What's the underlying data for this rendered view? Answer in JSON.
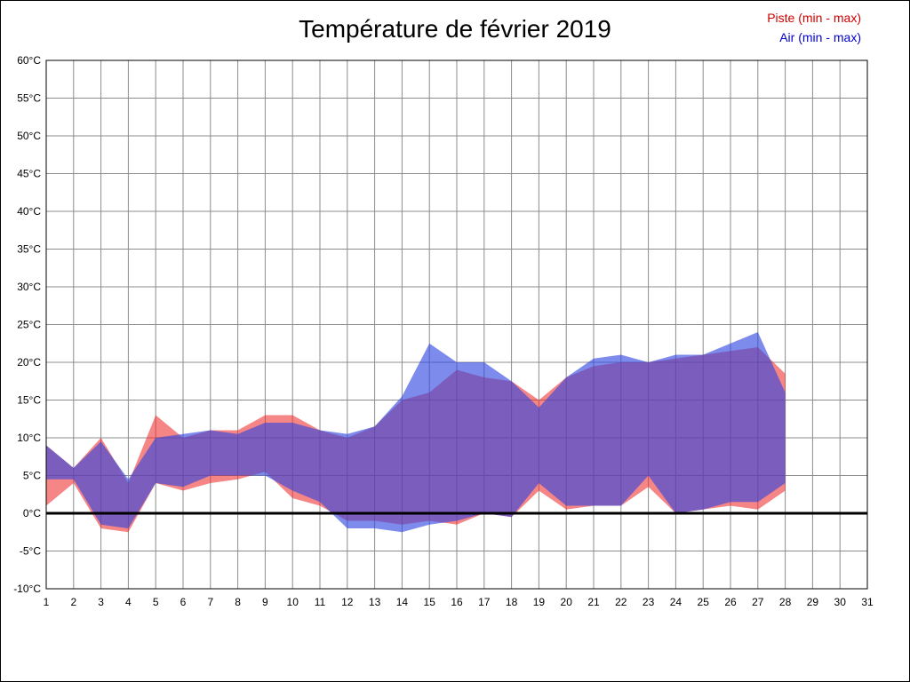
{
  "header": {
    "title": "Température de février 2019"
  },
  "legend": {
    "items": [
      {
        "label": "Piste (min - max)",
        "color": "#cc0000"
      },
      {
        "label": "Air (min - max)",
        "color": "#0000cc"
      }
    ]
  },
  "chart_data": {
    "type": "area",
    "title": "Température de février 2019",
    "xlabel": "",
    "ylabel": "",
    "xlim": [
      1,
      31
    ],
    "ylim": [
      -10,
      60
    ],
    "ytick_step": 5,
    "grid": true,
    "grid_color": "#8c8c8c",
    "zero_line": {
      "value": 0,
      "color": "#000000",
      "width": 3
    },
    "x": [
      1,
      2,
      3,
      4,
      5,
      6,
      7,
      8,
      9,
      10,
      11,
      12,
      13,
      14,
      15,
      16,
      17,
      18,
      19,
      20,
      21,
      22,
      23,
      24,
      25,
      26,
      27,
      28
    ],
    "xticks": [
      "1",
      "2",
      "3",
      "4",
      "5",
      "6",
      "7",
      "8",
      "9",
      "10",
      "11",
      "12",
      "13",
      "14",
      "15",
      "16",
      "17",
      "18",
      "19",
      "20",
      "21",
      "22",
      "23",
      "24",
      "25",
      "26",
      "27",
      "28",
      "29",
      "30",
      "31"
    ],
    "yticks": [
      "60°C",
      "55°C",
      "50°C",
      "45°C",
      "40°C",
      "35°C",
      "30°C",
      "25°C",
      "20°C",
      "15°C",
      "10°C",
      "5°C",
      "0°C",
      "-5°C",
      "-10°C"
    ],
    "series": [
      {
        "id": "piste",
        "name": "Piste (min - max)",
        "legend_color": "#cc0000",
        "fill": "rgba(240,40,40,0.57)",
        "min": [
          1,
          4,
          -2,
          -2.5,
          4,
          3,
          4,
          4.5,
          5.5,
          2,
          1,
          -1,
          -1,
          -1.5,
          -1,
          -1.5,
          0,
          -0.5,
          3,
          0.5,
          1,
          1,
          3.5,
          0,
          0.5,
          1,
          0.5,
          3
        ],
        "max": [
          9,
          6,
          10,
          4,
          13,
          10,
          11,
          11,
          13,
          13,
          11,
          10,
          11.5,
          15,
          16,
          19,
          18,
          17.5,
          15,
          18,
          19.5,
          20,
          20,
          20.5,
          21,
          21.5,
          22,
          18.5
        ]
      },
      {
        "id": "air",
        "name": "Air (min - max)",
        "legend_color": "#0000cc",
        "fill": "rgba(45,70,225,0.62)",
        "min": [
          4.5,
          4.5,
          -1.5,
          -2,
          4,
          3.5,
          5,
          5,
          5,
          3,
          1.5,
          -2,
          -2,
          -2.5,
          -1.5,
          -1,
          0,
          -0.5,
          4,
          1,
          1,
          1,
          5,
          0,
          0.5,
          1.5,
          1.5,
          4
        ],
        "max": [
          9,
          6,
          9.5,
          4.5,
          10,
          10.5,
          11,
          10.5,
          12,
          12,
          11,
          10.5,
          11.5,
          15.5,
          22.5,
          20,
          20,
          17.5,
          14,
          18,
          20.5,
          21,
          20,
          21,
          21,
          22.5,
          24,
          16
        ]
      }
    ]
  }
}
